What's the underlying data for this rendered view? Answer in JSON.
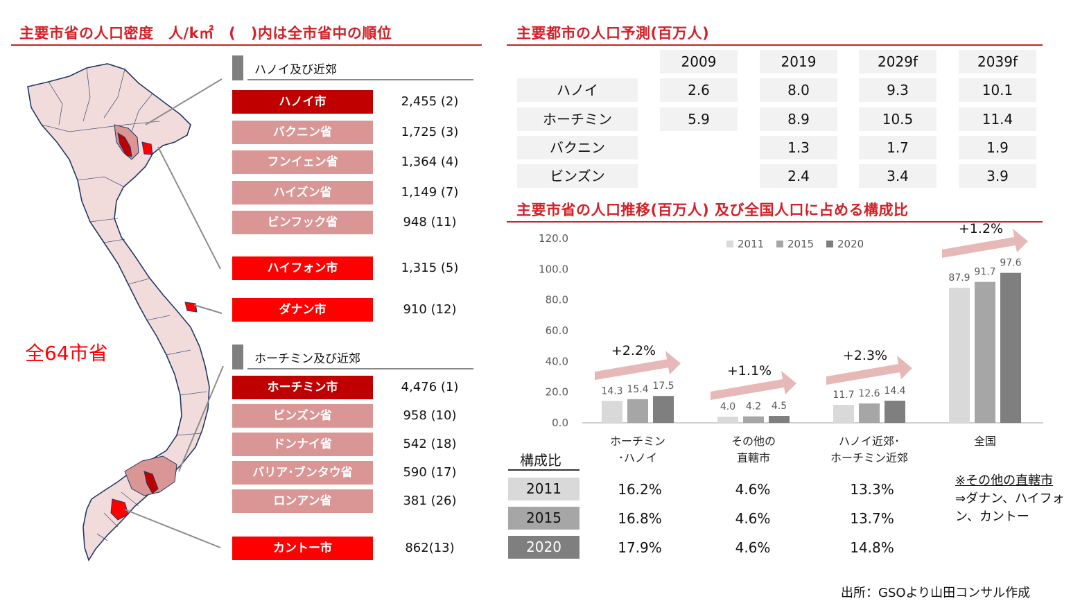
{
  "left_panel": {
    "title": "主要市省の人口密度　人/k㎡　(　)内は全市省中の順位",
    "total_label": "全64市省",
    "hanoi_group": "ハノイ及び近郊",
    "hcm_group": "ホーチミン及び近郊",
    "provinces": [
      {
        "name": "ハノイ市",
        "value": "2,455 (2)",
        "style": "dark"
      },
      {
        "name": "バクニン省",
        "value": "1,725 (3)",
        "style": "pink"
      },
      {
        "name": "フンイェン省",
        "value": "1,364 (4)",
        "style": "pink"
      },
      {
        "name": "ハイズン省",
        "value": "1,149 (7)",
        "style": "pink"
      },
      {
        "name": "ビンフック省",
        "value": "948 (11)",
        "style": "pink"
      },
      {
        "name": "ハイフォン市",
        "value": "1,315 (5)",
        "style": "red"
      },
      {
        "name": "ダナン市",
        "value": "910 (12)",
        "style": "red"
      },
      {
        "name": "ホーチミン市",
        "value": "4,476 (1)",
        "style": "dark"
      },
      {
        "name": "ビンズン省",
        "value": "958 (10)",
        "style": "pink"
      },
      {
        "name": "ドンナイ省",
        "value": "542 (18)",
        "style": "pink"
      },
      {
        "name": "バリア･ブンタウ省",
        "value": "590 (17)",
        "style": "pink"
      },
      {
        "name": "ロンアン省",
        "value": "381 (26)",
        "style": "pink"
      },
      {
        "name": "カントー市",
        "value": "862(13)",
        "style": "red"
      }
    ]
  },
  "forecast": {
    "title": "主要都市の人口予測(百万人)",
    "years": [
      "2009",
      "2019",
      "2029f",
      "2039f"
    ],
    "rows": [
      {
        "city": "ハノイ",
        "values": [
          "2.6",
          "8.0",
          "9.3",
          "10.1"
        ]
      },
      {
        "city": "ホーチミン",
        "values": [
          "5.9",
          "8.9",
          "10.5",
          "11.4"
        ]
      },
      {
        "city": "バクニン",
        "values": [
          "",
          "1.3",
          "1.7",
          "1.9"
        ]
      },
      {
        "city": "ビンズン",
        "values": [
          "",
          "2.4",
          "3.4",
          "3.9"
        ]
      }
    ]
  },
  "trend": {
    "title": "主要市省の人口推移(百万人) 及び全国人口に占める構成比",
    "growth_labels": [
      "+2.2%",
      "+1.1%",
      "+2.3%",
      "+1.2%"
    ],
    "composition_header": "構成比",
    "composition_years": [
      "2011",
      "2015",
      "2020"
    ],
    "composition": [
      [
        "16.2%",
        "4.6%",
        "13.3%"
      ],
      [
        "16.8%",
        "4.6%",
        "13.7%"
      ],
      [
        "17.9%",
        "4.6%",
        "14.8%"
      ]
    ],
    "note_title": "※その他の直轄市",
    "note_body": "⇒ダナン、ハイフォン、カントー",
    "source": "出所：GSOより山田コンサル作成"
  },
  "colors": {
    "title_red": "#d42027",
    "dark_red": "#c00000",
    "red": "#ff0000",
    "pink": "#d99694",
    "bar_2011": "#d9d9d9",
    "bar_2015": "#a6a6a6",
    "bar_2020": "#7f7f7f",
    "arrow": "#e6b9b8"
  },
  "chart_data": {
    "type": "bar",
    "categories": [
      "ホーチミン\n･ハノイ",
      "その他の\n直轄市",
      "ハノイ近郊･\nホーチミン近郊",
      "全国"
    ],
    "series": [
      {
        "name": "2011",
        "values": [
          14.3,
          4.0,
          11.7,
          87.9
        ]
      },
      {
        "name": "2015",
        "values": [
          15.4,
          4.2,
          12.6,
          91.7
        ]
      },
      {
        "name": "2020",
        "values": [
          17.5,
          4.5,
          14.4,
          97.6
        ]
      }
    ],
    "ylim": [
      0,
      120
    ],
    "yticks": [
      "0.0",
      "20.0",
      "40.0",
      "60.0",
      "80.0",
      "100.0",
      "120.0"
    ],
    "legend_position": "top",
    "grid": false
  }
}
